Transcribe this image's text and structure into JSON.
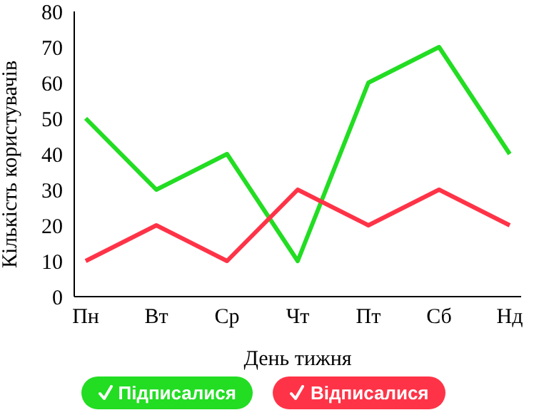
{
  "chart_data": {
    "type": "line",
    "xlabel": "День тижня",
    "ylabel": "Кількість користувачів",
    "categories": [
      "Пн",
      "Вт",
      "Ср",
      "Чт",
      "Пт",
      "Сб",
      "Нд"
    ],
    "series": [
      {
        "name": "Підписалися",
        "color": "#22dd22",
        "values": [
          50,
          30,
          40,
          10,
          60,
          70,
          40
        ]
      },
      {
        "name": "Відписалися",
        "color": "#ff3347",
        "values": [
          10,
          20,
          10,
          30,
          20,
          30,
          20
        ]
      }
    ],
    "ylim": [
      0,
      80
    ],
    "yticks": [
      0,
      10,
      20,
      30,
      40,
      50,
      60,
      70,
      80
    ],
    "grid": false,
    "legend": "bottom",
    "marker": "none",
    "line_style": "solid"
  }
}
